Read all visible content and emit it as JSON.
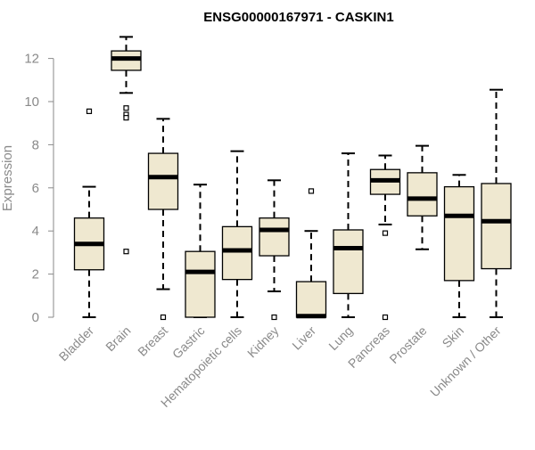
{
  "chart_data": {
    "type": "boxplot",
    "title": "ENSG00000167971 - CASKIN1",
    "xlabel": "",
    "ylabel": "Expression",
    "ylim": [
      0,
      13
    ],
    "yticks": [
      0,
      2,
      4,
      6,
      8,
      10,
      12
    ],
    "grid": false,
    "colors": {
      "box_fill": "#efe8d0",
      "box_stroke": "#000000",
      "median": "#000000",
      "axis": "#8a8a8a"
    },
    "categories": [
      "Bladder",
      "Brain",
      "Breast",
      "Gastric",
      "Hematopoietic cells",
      "Kidney",
      "Liver",
      "Lung",
      "Pancreas",
      "Prostate",
      "Skin",
      "Unknown / Other"
    ],
    "boxes": [
      {
        "category": "Bladder",
        "whisker_low": 0.0,
        "q1": 2.2,
        "median": 3.4,
        "q3": 4.6,
        "whisker_high": 6.05,
        "outliers": [
          9.55
        ]
      },
      {
        "category": "Brain",
        "whisker_low": 10.4,
        "q1": 11.45,
        "median": 12.0,
        "q3": 12.35,
        "whisker_high": 13.0,
        "outliers": [
          9.7,
          9.4,
          9.25,
          3.05
        ]
      },
      {
        "category": "Breast",
        "whisker_low": 1.3,
        "q1": 5.0,
        "median": 6.5,
        "q3": 7.6,
        "whisker_high": 9.2,
        "outliers": [
          0.0
        ]
      },
      {
        "category": "Gastric",
        "whisker_low": 0.0,
        "q1": 0.0,
        "median": 2.1,
        "q3": 3.05,
        "whisker_high": 6.15,
        "outliers": []
      },
      {
        "category": "Hematopoietic cells",
        "whisker_low": 0.0,
        "q1": 1.75,
        "median": 3.1,
        "q3": 4.2,
        "whisker_high": 7.7,
        "outliers": []
      },
      {
        "category": "Kidney",
        "whisker_low": 1.2,
        "q1": 2.85,
        "median": 4.05,
        "q3": 4.6,
        "whisker_high": 6.35,
        "outliers": [
          0.0
        ]
      },
      {
        "category": "Liver",
        "whisker_low": 0.0,
        "q1": 0.0,
        "median": 0.05,
        "q3": 1.65,
        "whisker_high": 4.0,
        "outliers": [
          5.85
        ]
      },
      {
        "category": "Lung",
        "whisker_low": 0.0,
        "q1": 1.1,
        "median": 3.2,
        "q3": 4.05,
        "whisker_high": 7.6,
        "outliers": []
      },
      {
        "category": "Pancreas",
        "whisker_low": 4.3,
        "q1": 5.7,
        "median": 6.35,
        "q3": 6.85,
        "whisker_high": 7.5,
        "outliers": [
          3.9,
          0.0
        ]
      },
      {
        "category": "Prostate",
        "whisker_low": 3.15,
        "q1": 4.7,
        "median": 5.5,
        "q3": 6.7,
        "whisker_high": 7.95,
        "outliers": []
      },
      {
        "category": "Skin",
        "whisker_low": 0.0,
        "q1": 1.7,
        "median": 4.7,
        "q3": 6.05,
        "whisker_high": 6.6,
        "outliers": []
      },
      {
        "category": "Unknown / Other",
        "whisker_low": 0.0,
        "q1": 2.25,
        "median": 4.45,
        "q3": 6.2,
        "whisker_high": 10.55,
        "outliers": []
      }
    ]
  }
}
